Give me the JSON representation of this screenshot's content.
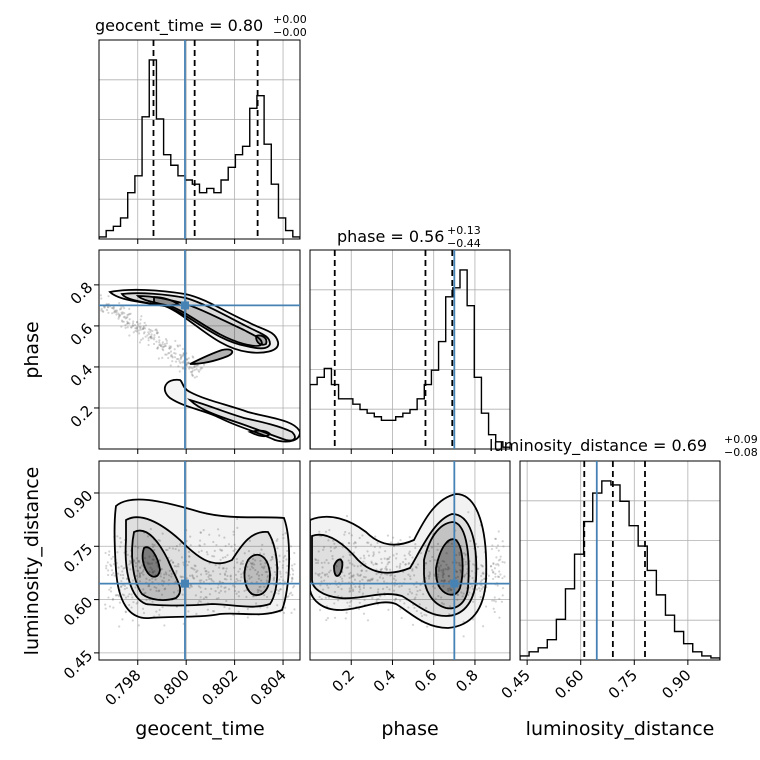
{
  "chart_data": {
    "type": "corner",
    "parameters": [
      "geocent_time",
      "phase",
      "luminosity_distance"
    ],
    "titles": [
      {
        "param": "geocent_time",
        "text": "geocent_time = 0.80",
        "sup": "+0.00",
        "sub": "−0.00"
      },
      {
        "param": "phase",
        "text": "phase = 0.56",
        "sup": "+0.13",
        "sub": "−0.44"
      },
      {
        "param": "luminosity_distance",
        "text": "luminosity_distance = 0.69",
        "sup": "+0.09",
        "sub": "−0.08"
      }
    ],
    "ranges": {
      "geocent_time": [
        0.7964,
        0.8047
      ],
      "phase": [
        0.0,
        0.97
      ],
      "luminosity_distance": [
        0.43,
        0.99
      ]
    },
    "ticks": {
      "geocent_time": [
        "0.798",
        "0.800",
        "0.802",
        "0.804"
      ],
      "phase": [
        "0.2",
        "0.4",
        "0.6",
        "0.8"
      ],
      "luminosity_distance": [
        "0.45",
        "0.60",
        "0.75",
        "0.90"
      ]
    },
    "truths": {
      "geocent_time": 0.79995,
      "phase": 0.7,
      "luminosity_distance": 0.645
    },
    "quantiles": {
      "geocent_time": [
        0.79865,
        0.80035,
        0.80295
      ],
      "phase": [
        0.12,
        0.56,
        0.69
      ],
      "luminosity_distance": [
        0.61,
        0.69,
        0.78
      ]
    },
    "histograms": {
      "geocent_time": [
        1,
        4,
        6,
        10,
        22,
        30,
        58,
        85,
        57,
        40,
        35,
        30,
        28,
        26,
        22,
        24,
        22,
        28,
        34,
        40,
        44,
        62,
        68,
        45,
        26,
        10,
        4,
        1
      ],
      "phase": [
        36,
        40,
        45,
        36,
        28,
        28,
        25,
        22,
        20,
        18,
        16,
        16,
        18,
        20,
        22,
        28,
        36,
        44,
        60,
        85,
        90,
        100,
        80,
        40,
        20,
        8,
        4,
        1
      ],
      "luminosity_distance": [
        2,
        4,
        6,
        10,
        20,
        35,
        52,
        68,
        82,
        88,
        86,
        78,
        66,
        56,
        44,
        32,
        22,
        14,
        8,
        4,
        2,
        1
      ]
    },
    "axis_labels": {
      "x": [
        "geocent_time",
        "phase",
        "luminosity_distance"
      ],
      "y": [
        "phase",
        "luminosity_distance"
      ]
    },
    "grid": true,
    "colors": {
      "truth": "#4682b4",
      "hist": "#000000",
      "quantile": "#000000",
      "grid": "#b0b0b0",
      "scatter": "#808080"
    }
  }
}
